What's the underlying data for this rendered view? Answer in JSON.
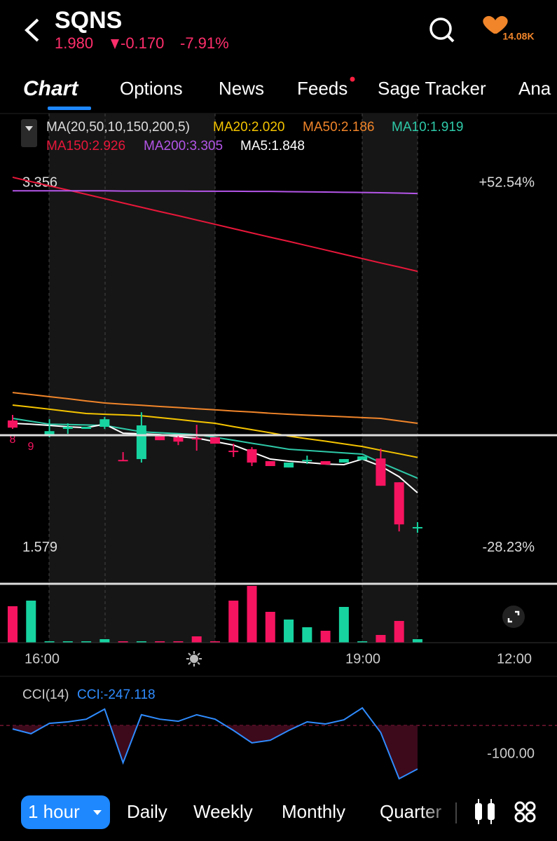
{
  "header": {
    "symbol": "SQNS",
    "price": "1.980",
    "change": "-0.170",
    "change_pct": "-7.91%",
    "followers": "14.08K"
  },
  "tabs": [
    "Chart",
    "Options",
    "News",
    "Feeds",
    "Sage Tracker",
    "Ana"
  ],
  "chart": {
    "indicator": "MA(20,50,10,150,200,5)",
    "ylim": [
      1.415,
      3.476
    ],
    "yticks": [
      3.356,
      1.579
    ],
    "right_labels": [
      "+52.54%",
      "-28.23%"
    ],
    "ma": [
      {
        "label": "MA20:2.020",
        "color": "#f5c400",
        "values": [
          2.275,
          2.265,
          2.255,
          2.244,
          2.234,
          2.23,
          2.227,
          2.223,
          2.214,
          2.205,
          2.195,
          2.186,
          2.17,
          2.155,
          2.14,
          2.124,
          2.111,
          2.099,
          2.086,
          2.073,
          2.055,
          2.038,
          2.02
        ]
      },
      {
        "label": "MA50:2.186",
        "color": "#f0852a",
        "values": [
          2.336,
          2.326,
          2.316,
          2.306,
          2.295,
          2.285,
          2.279,
          2.274,
          2.268,
          2.263,
          2.257,
          2.252,
          2.246,
          2.241,
          2.235,
          2.23,
          2.226,
          2.222,
          2.218,
          2.214,
          2.21,
          2.198,
          2.186
        ]
      },
      {
        "label": "MA10:1.919",
        "color": "#2ec9a8",
        "values": [
          2.21,
          2.196,
          2.182,
          2.18,
          2.178,
          2.176,
          2.16,
          2.145,
          2.14,
          2.136,
          2.131,
          2.118,
          2.104,
          2.089,
          2.075,
          2.06,
          2.054,
          2.048,
          2.042,
          2.036,
          1.995,
          1.957,
          1.919
        ]
      },
      {
        "label": "MA150:2.926",
        "color": "#e8173a",
        "values": [
          3.384,
          3.363,
          3.342,
          3.322,
          3.301,
          3.28,
          3.259,
          3.238,
          3.217,
          3.197,
          3.176,
          3.155,
          3.134,
          3.113,
          3.092,
          3.072,
          3.051,
          3.03,
          3.009,
          2.988,
          2.967,
          2.947,
          2.926
        ]
      },
      {
        "label": "MA200:3.305",
        "color": "#b455e8",
        "values": [
          3.318,
          3.318,
          3.318,
          3.318,
          3.318,
          3.318,
          3.317,
          3.317,
          3.317,
          3.317,
          3.316,
          3.316,
          3.316,
          3.315,
          3.315,
          3.314,
          3.313,
          3.312,
          3.311,
          3.31,
          3.309,
          3.307,
          3.305
        ]
      },
      {
        "label": "MA5:1.848",
        "color": "#ffffff",
        "values": [
          2.186,
          2.182,
          2.176,
          2.169,
          2.165,
          2.182,
          2.138,
          2.135,
          2.131,
          2.121,
          2.114,
          2.097,
          2.08,
          2.046,
          2.012,
          2.002,
          1.995,
          1.988,
          1.985,
          2.012,
          1.978,
          1.926,
          1.848
        ]
      }
    ],
    "candles": [
      [
        2.2,
        2.227,
        2.159,
        2.165
      ],
      null,
      [
        2.128,
        2.206,
        2.118,
        2.148
      ],
      [
        2.159,
        2.186,
        2.135,
        2.169
      ],
      [
        2.159,
        2.169,
        2.159,
        2.169
      ],
      [
        2.169,
        2.217,
        2.159,
        2.206
      ],
      [
        2.008,
        2.046,
        2.002,
        2.002
      ],
      [
        2.012,
        2.24,
        1.995,
        2.176
      ],
      [
        2.128,
        2.128,
        2.104,
        2.104
      ],
      [
        2.118,
        2.131,
        2.08,
        2.097
      ],
      [
        2.114,
        2.179,
        2.053,
        2.112
      ],
      [
        2.118,
        2.118,
        2.087,
        2.087
      ],
      [
        2.053,
        2.087,
        2.022,
        2.046
      ],
      [
        2.06,
        2.07,
        1.978,
        1.995
      ],
      [
        2.002,
        2.002,
        1.978,
        1.978
      ],
      [
        1.971,
        1.995,
        1.971,
        1.995
      ],
      [
        2.005,
        2.029,
        1.988,
        2.008
      ],
      [
        2.002,
        2.002,
        1.985,
        1.985
      ],
      [
        1.995,
        2.012,
        1.995,
        2.012
      ],
      [
        2.008,
        2.025,
        2.008,
        2.025
      ],
      [
        2.015,
        2.063,
        1.882,
        1.882
      ],
      [
        1.899,
        1.899,
        1.66,
        1.694
      ],
      [
        1.681,
        1.705,
        1.653,
        1.681
      ]
    ],
    "markers": [
      "8",
      "9"
    ],
    "volume": [
      52,
      60,
      2,
      2,
      2,
      5,
      2,
      2,
      2,
      2,
      9,
      2,
      60,
      81,
      44,
      33,
      22,
      17,
      51,
      2,
      11,
      31,
      5
    ],
    "time_labels": [
      "16:00",
      "19:00",
      "12:00"
    ],
    "cci": {
      "title": "CCI(14)",
      "label": "CCI:-247.118",
      "ylim": [
        -301,
        54
      ],
      "yticks": [
        {
          "value": -100,
          "label": "-100.00"
        }
      ],
      "values": [
        -112,
        -128,
        -93,
        -88,
        -79,
        -45,
        -226,
        -64,
        -79,
        -86,
        -64,
        -79,
        -117,
        -159,
        -150,
        -117,
        -88,
        -95,
        -81,
        -41,
        -124,
        -280,
        -247.118
      ]
    }
  },
  "bottom": {
    "selected": "1 hour",
    "options": [
      "Daily",
      "Weekly",
      "Monthly",
      "Quarter"
    ]
  }
}
